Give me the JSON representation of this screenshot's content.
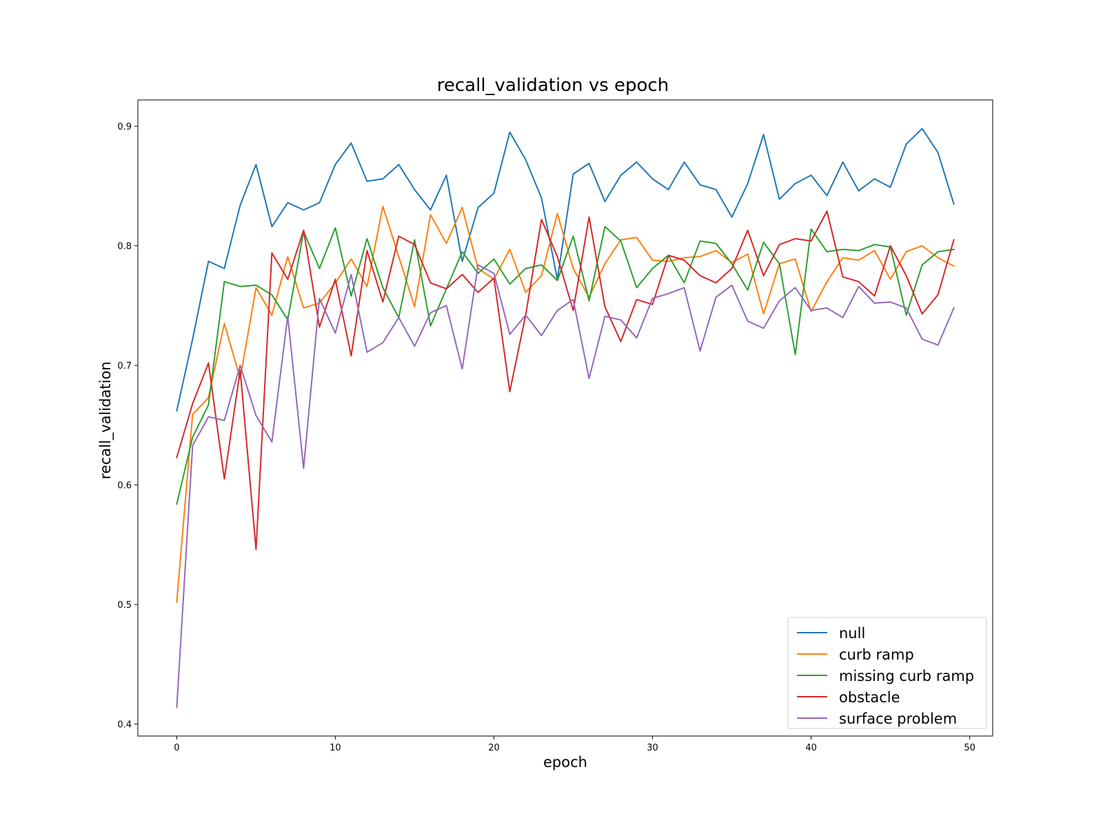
{
  "chart_data": {
    "type": "line",
    "title": "recall_validation vs epoch",
    "xlabel": "epoch",
    "ylabel": "recall_validation",
    "xlim": [
      -2.45,
      51.45
    ],
    "ylim": [
      0.39,
      0.922
    ],
    "xticks": [
      0,
      10,
      20,
      30,
      40,
      50
    ],
    "yticks": [
      0.4,
      0.5,
      0.6,
      0.7,
      0.8,
      0.9
    ],
    "xtick_labels": [
      "0",
      "10",
      "20",
      "30",
      "40",
      "50"
    ],
    "ytick_labels": [
      "0.4",
      "0.5",
      "0.6",
      "0.7",
      "0.8",
      "0.9"
    ],
    "grid": false,
    "legend_position": "lower-right",
    "x": [
      0,
      1,
      2,
      3,
      4,
      5,
      6,
      7,
      8,
      9,
      10,
      11,
      12,
      13,
      14,
      15,
      16,
      17,
      18,
      19,
      20,
      21,
      22,
      23,
      24,
      25,
      26,
      27,
      28,
      29,
      30,
      31,
      32,
      33,
      34,
      35,
      36,
      37,
      38,
      39,
      40,
      41,
      42,
      43,
      44,
      45,
      46,
      47,
      48,
      49
    ],
    "series": [
      {
        "name": "null",
        "color": "#1f77b4",
        "values": [
          0.662,
          0.722,
          0.787,
          0.781,
          0.834,
          0.868,
          0.816,
          0.836,
          0.83,
          0.836,
          0.868,
          0.886,
          0.854,
          0.856,
          0.868,
          0.847,
          0.83,
          0.859,
          0.787,
          0.832,
          0.844,
          0.895,
          0.872,
          0.84,
          0.772,
          0.86,
          0.869,
          0.837,
          0.859,
          0.87,
          0.856,
          0.847,
          0.87,
          0.851,
          0.847,
          0.824,
          0.852,
          0.893,
          0.839,
          0.852,
          0.859,
          0.842,
          0.87,
          0.846,
          0.856,
          0.849,
          0.885,
          0.898,
          0.878,
          0.835
        ]
      },
      {
        "name": "curb ramp",
        "color": "#ff7f0e",
        "values": [
          0.502,
          0.659,
          0.673,
          0.735,
          0.689,
          0.765,
          0.742,
          0.791,
          0.748,
          0.752,
          0.769,
          0.789,
          0.766,
          0.833,
          0.791,
          0.749,
          0.826,
          0.802,
          0.832,
          0.781,
          0.772,
          0.797,
          0.761,
          0.775,
          0.827,
          0.781,
          0.757,
          0.785,
          0.805,
          0.807,
          0.788,
          0.787,
          0.79,
          0.791,
          0.796,
          0.786,
          0.793,
          0.743,
          0.785,
          0.789,
          0.745,
          0.77,
          0.79,
          0.788,
          0.796,
          0.772,
          0.795,
          0.8,
          0.79,
          0.783
        ]
      },
      {
        "name": "missing curb ramp",
        "color": "#2ca02c",
        "values": [
          0.584,
          0.64,
          0.667,
          0.77,
          0.766,
          0.767,
          0.759,
          0.738,
          0.812,
          0.781,
          0.815,
          0.758,
          0.806,
          0.765,
          0.74,
          0.805,
          0.733,
          0.764,
          0.795,
          0.777,
          0.789,
          0.768,
          0.781,
          0.784,
          0.771,
          0.808,
          0.754,
          0.816,
          0.804,
          0.765,
          0.781,
          0.792,
          0.769,
          0.804,
          0.802,
          0.785,
          0.763,
          0.803,
          0.785,
          0.709,
          0.814,
          0.795,
          0.797,
          0.796,
          0.801,
          0.799,
          0.742,
          0.784,
          0.795,
          0.797
        ]
      },
      {
        "name": "obstacle",
        "color": "#d62728",
        "values": [
          0.623,
          0.668,
          0.702,
          0.605,
          0.696,
          0.546,
          0.794,
          0.772,
          0.813,
          0.732,
          0.772,
          0.708,
          0.796,
          0.753,
          0.808,
          0.801,
          0.769,
          0.764,
          0.776,
          0.761,
          0.773,
          0.678,
          0.742,
          0.822,
          0.791,
          0.746,
          0.824,
          0.749,
          0.72,
          0.755,
          0.751,
          0.792,
          0.788,
          0.775,
          0.769,
          0.781,
          0.813,
          0.775,
          0.801,
          0.806,
          0.804,
          0.829,
          0.774,
          0.77,
          0.758,
          0.8,
          0.775,
          0.743,
          0.759,
          0.805
        ]
      },
      {
        "name": "surface problem",
        "color": "#9467bd",
        "values": [
          0.414,
          0.633,
          0.657,
          0.654,
          0.7,
          0.658,
          0.636,
          0.741,
          0.614,
          0.756,
          0.727,
          0.776,
          0.711,
          0.719,
          0.74,
          0.716,
          0.744,
          0.75,
          0.697,
          0.784,
          0.777,
          0.726,
          0.742,
          0.725,
          0.746,
          0.755,
          0.689,
          0.741,
          0.738,
          0.723,
          0.756,
          0.76,
          0.765,
          0.712,
          0.757,
          0.767,
          0.737,
          0.731,
          0.754,
          0.765,
          0.746,
          0.748,
          0.74,
          0.766,
          0.752,
          0.753,
          0.748,
          0.722,
          0.717,
          0.748
        ]
      }
    ]
  }
}
